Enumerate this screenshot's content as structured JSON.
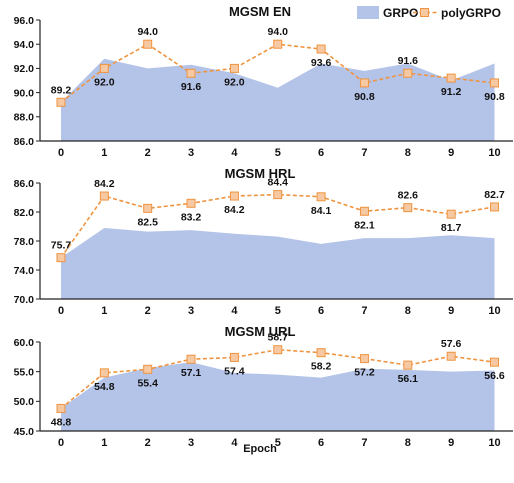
{
  "chart_data": [
    {
      "type": "line",
      "title": "MGSM EN",
      "x": [
        0,
        1,
        2,
        3,
        4,
        5,
        6,
        7,
        8,
        9,
        10
      ],
      "ylim": [
        86.0,
        96.0
      ],
      "yticks": [
        "86.0",
        "88.0",
        "90.0",
        "92.0",
        "94.0",
        "96.0"
      ],
      "series": [
        {
          "name": "GRPO",
          "style": "area",
          "color": "#b4c3e8",
          "values": [
            89.2,
            92.8,
            92.0,
            92.3,
            91.6,
            90.4,
            92.4,
            91.8,
            92.4,
            91.0,
            92.4
          ]
        },
        {
          "name": "polyGRPO",
          "style": "dashed-line-square",
          "color": "#ef9440",
          "values": [
            89.2,
            92.0,
            94.0,
            91.6,
            92.0,
            94.0,
            93.6,
            90.8,
            91.6,
            91.2,
            90.8
          ],
          "labels": [
            "89.2",
            "92.0",
            "94.0",
            "91.6",
            "92.0",
            "94.0",
            "93.6",
            "90.8",
            "91.6",
            "91.2",
            "90.8"
          ]
        }
      ]
    },
    {
      "type": "line",
      "title": "MGSM HRL",
      "x": [
        0,
        1,
        2,
        3,
        4,
        5,
        6,
        7,
        8,
        9,
        10
      ],
      "ylim": [
        70.0,
        86.0
      ],
      "yticks": [
        "70.0",
        "74.0",
        "78.0",
        "82.0",
        "86.0"
      ],
      "series": [
        {
          "name": "GRPO",
          "style": "area",
          "color": "#b4c3e8",
          "values": [
            75.7,
            79.8,
            79.3,
            79.5,
            79.0,
            78.6,
            77.6,
            78.4,
            78.4,
            78.8,
            78.4
          ]
        },
        {
          "name": "polyGRPO",
          "style": "dashed-line-square",
          "color": "#ef9440",
          "values": [
            75.7,
            84.2,
            82.5,
            83.2,
            84.2,
            84.4,
            84.1,
            82.1,
            82.6,
            81.7,
            82.7
          ],
          "labels": [
            "75.7",
            "84.2",
            "82.5",
            "83.2",
            "84.2",
            "84.4",
            "84.1",
            "82.1",
            "82.6",
            "81.7",
            "82.7"
          ]
        }
      ]
    },
    {
      "type": "line",
      "title": "MGSM URL",
      "xlabel": "Epoch",
      "x": [
        0,
        1,
        2,
        3,
        4,
        5,
        6,
        7,
        8,
        9,
        10
      ],
      "ylim": [
        45.0,
        60.0
      ],
      "yticks": [
        "45.0",
        "50.0",
        "55.0",
        "60.0"
      ],
      "series": [
        {
          "name": "GRPO",
          "style": "area",
          "color": "#b4c3e8",
          "values": [
            48.8,
            54.0,
            55.6,
            56.6,
            54.8,
            54.5,
            54.0,
            55.5,
            55.3,
            55.0,
            55.2
          ]
        },
        {
          "name": "polyGRPO",
          "style": "dashed-line-square",
          "color": "#ef9440",
          "values": [
            48.8,
            54.8,
            55.4,
            57.1,
            57.4,
            58.7,
            58.2,
            57.2,
            56.1,
            57.6,
            56.6
          ],
          "labels": [
            "48.8",
            "54.8",
            "55.4",
            "57.1",
            "57.4",
            "58.7",
            "58.2",
            "57.2",
            "56.1",
            "57.6",
            "56.6"
          ]
        }
      ]
    }
  ],
  "legend": {
    "position": "top-right",
    "items": [
      {
        "label": "GRPO",
        "style": "area",
        "color": "#b4c3e8"
      },
      {
        "label": "polyGRPO",
        "style": "dashed-line-square",
        "color": "#ef9440"
      }
    ]
  }
}
